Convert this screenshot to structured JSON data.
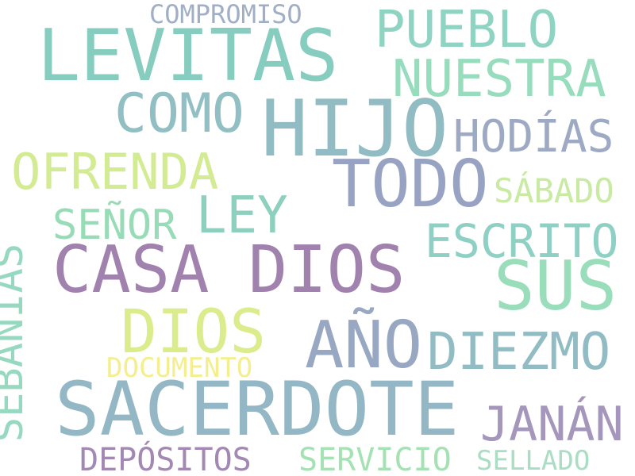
{
  "word_cloud": {
    "words": [
      {
        "id": "compromiso",
        "text": "COMPROMISO",
        "color": "#a1afc6"
      },
      {
        "id": "levitas",
        "text": "LEVITAS",
        "color": "#86cdbf"
      },
      {
        "id": "pueblo",
        "text": "PUEBLO",
        "color": "#8fd3c2"
      },
      {
        "id": "nuestra",
        "text": "NUESTRA",
        "color": "#97dcbd"
      },
      {
        "id": "como",
        "text": "COMO",
        "color": "#91bfc4"
      },
      {
        "id": "hijo",
        "text": "HIJO",
        "color": "#92bcc3"
      },
      {
        "id": "hodias",
        "text": "HODÍAS",
        "color": "#9eaac3"
      },
      {
        "id": "ofrenda",
        "text": "OFRENDA",
        "color": "#d3ec94"
      },
      {
        "id": "todo",
        "text": "TODO",
        "color": "#98a3c3"
      },
      {
        "id": "sabado",
        "text": "SÁBADO",
        "color": "#c9eaa3"
      },
      {
        "id": "senor",
        "text": "SEÑOR",
        "color": "#98dcb7"
      },
      {
        "id": "ley",
        "text": "LEY",
        "color": "#8dd0bd"
      },
      {
        "id": "escrito",
        "text": "ESCRITO",
        "color": "#8fd0c4"
      },
      {
        "id": "casa_dios",
        "text": "CASA DIOS",
        "color": "#a181ad"
      },
      {
        "id": "sus",
        "text": "SUS",
        "color": "#99ddba"
      },
      {
        "id": "sebanias",
        "text": "SEBANÍAS",
        "color": "#97d8c1"
      },
      {
        "id": "dios",
        "text": "DIOS",
        "color": "#dbec8c"
      },
      {
        "id": "ano",
        "text": "AÑO",
        "color": "#98a8c2"
      },
      {
        "id": "diezmo",
        "text": "DIEZMO",
        "color": "#92bcc4"
      },
      {
        "id": "documento",
        "text": "DOCUMENTO",
        "color": "#f4ee8e"
      },
      {
        "id": "sacerdote",
        "text": "SACERDOTE",
        "color": "#93b7c5"
      },
      {
        "id": "janan",
        "text": "JANÁN",
        "color": "#a596bb"
      },
      {
        "id": "depositos",
        "text": "DEPÓSITOS",
        "color": "#a288b3"
      },
      {
        "id": "servicio",
        "text": "SERVICIO",
        "color": "#a4e1b3"
      },
      {
        "id": "sellado",
        "text": "SELLADO",
        "color": "#a9dec4"
      }
    ]
  }
}
